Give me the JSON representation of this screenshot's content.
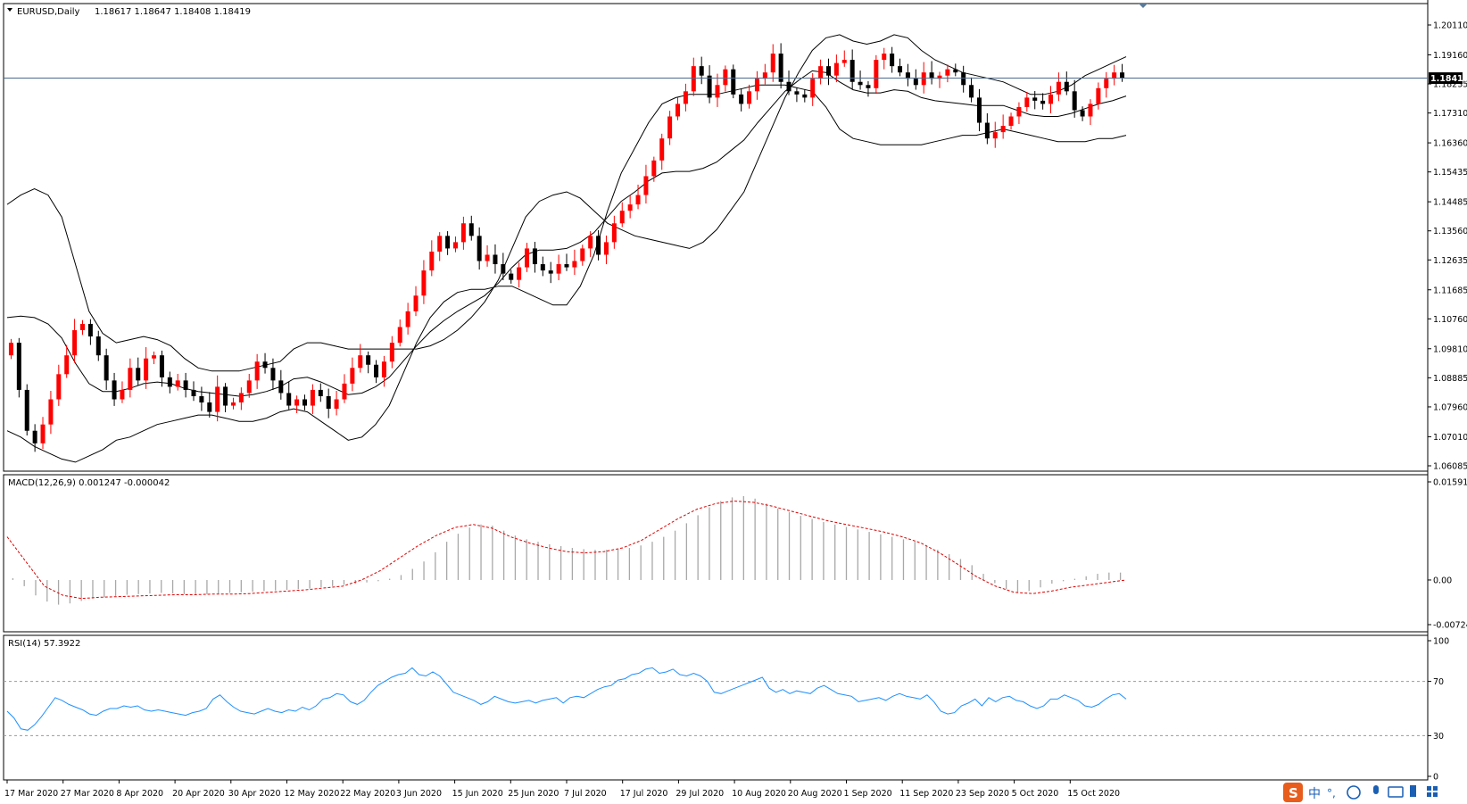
{
  "chart_data": [
    {
      "type": "candlestick",
      "title": "EURUSD,Daily",
      "ohlc_header": "1.18617 1.18647 1.18408 1.18419",
      "current_price": "1.18419",
      "y_ticks": [
        "1.20110",
        "1.19160",
        "1.18235",
        "1.17310",
        "1.16360",
        "1.15435",
        "1.14485",
        "1.13560",
        "1.12635",
        "1.11685",
        "1.10760",
        "1.09810",
        "1.08885",
        "1.07960",
        "1.07010",
        "1.06085"
      ],
      "ylim": [
        1.06085,
        1.2011
      ],
      "x_ticks": [
        "17 Mar 2020",
        "27 Mar 2020",
        "8 Apr 2020",
        "20 Apr 2020",
        "30 Apr 2020",
        "12 May 2020",
        "22 May 2020",
        "3 Jun 2020",
        "15 Jun 2020",
        "25 Jun 2020",
        "7 Jul 2020",
        "17 Jul 2020",
        "29 Jul 2020",
        "10 Aug 2020",
        "20 Aug 2020",
        "1 Sep 2020",
        "11 Sep 2020",
        "23 Sep 2020",
        "5 Oct 2020",
        "15 Oct 2020"
      ],
      "overlays": [
        "Bollinger Bands (upper, middle, lower)"
      ],
      "close": [
        1.1,
        1.085,
        1.072,
        1.068,
        1.074,
        1.082,
        1.09,
        1.096,
        1.104,
        1.106,
        1.102,
        1.096,
        1.088,
        1.082,
        1.085,
        1.092,
        1.088,
        1.095,
        1.096,
        1.089,
        1.086,
        1.088,
        1.085,
        1.083,
        1.081,
        1.078,
        1.086,
        1.08,
        1.081,
        1.084,
        1.088,
        1.094,
        1.092,
        1.088,
        1.084,
        1.08,
        1.082,
        1.08,
        1.085,
        1.083,
        1.079,
        1.082,
        1.087,
        1.092,
        1.096,
        1.093,
        1.089,
        1.094,
        1.1,
        1.105,
        1.11,
        1.115,
        1.123,
        1.129,
        1.134,
        1.13,
        1.132,
        1.138,
        1.134,
        1.126,
        1.128,
        1.125,
        1.122,
        1.12,
        1.124,
        1.13,
        1.125,
        1.123,
        1.122,
        1.125,
        1.124,
        1.126,
        1.13,
        1.134,
        1.128,
        1.132,
        1.138,
        1.142,
        1.144,
        1.147,
        1.153,
        1.158,
        1.165,
        1.172,
        1.176,
        1.18,
        1.188,
        1.185,
        1.178,
        1.182,
        1.187,
        1.179,
        1.176,
        1.18,
        1.184,
        1.186,
        1.192,
        1.183,
        1.18,
        1.179,
        1.178,
        1.184,
        1.188,
        1.185,
        1.189,
        1.19,
        1.183,
        1.182,
        1.181,
        1.19,
        1.192,
        1.188,
        1.186,
        1.184,
        1.182,
        1.186,
        1.184,
        1.185,
        1.187,
        1.186,
        1.182,
        1.178,
        1.17,
        1.165,
        1.167,
        1.169,
        1.172,
        1.175,
        1.178,
        1.177,
        1.176,
        1.179,
        1.183,
        1.18,
        1.174,
        1.172,
        1.176,
        1.181,
        1.184,
        1.186,
        1.1842
      ],
      "bollinger_upper": [
        1.144,
        1.147,
        1.149,
        1.147,
        1.14,
        1.125,
        1.11,
        1.103,
        1.1,
        1.101,
        1.102,
        1.101,
        1.099,
        1.095,
        1.092,
        1.091,
        1.091,
        1.091,
        1.092,
        1.093,
        1.094,
        1.098,
        1.1,
        1.1,
        1.099,
        1.098,
        1.098,
        1.098,
        1.098,
        1.098,
        1.098,
        1.099,
        1.101,
        1.104,
        1.108,
        1.113,
        1.12,
        1.13,
        1.14,
        1.145,
        1.147,
        1.148,
        1.146,
        1.142,
        1.138,
        1.136,
        1.134,
        1.133,
        1.132,
        1.131,
        1.13,
        1.132,
        1.136,
        1.142,
        1.148,
        1.158,
        1.168,
        1.178,
        1.186,
        1.193,
        1.197,
        1.198,
        1.196,
        1.195,
        1.196,
        1.198,
        1.197,
        1.193,
        1.19,
        1.188,
        1.186,
        1.185,
        1.184,
        1.183,
        1.181,
        1.179,
        1.179,
        1.18,
        1.182,
        1.185,
        1.187,
        1.189,
        1.191
      ],
      "bollinger_lower": [
        1.072,
        1.07,
        1.067,
        1.065,
        1.063,
        1.062,
        1.064,
        1.066,
        1.069,
        1.07,
        1.072,
        1.074,
        1.075,
        1.076,
        1.077,
        1.077,
        1.076,
        1.075,
        1.075,
        1.076,
        1.078,
        1.079,
        1.078,
        1.075,
        1.072,
        1.069,
        1.07,
        1.074,
        1.08,
        1.09,
        1.1,
        1.108,
        1.113,
        1.116,
        1.117,
        1.117,
        1.118,
        1.118,
        1.116,
        1.114,
        1.112,
        1.112,
        1.118,
        1.128,
        1.142,
        1.154,
        1.162,
        1.17,
        1.176,
        1.178,
        1.179,
        1.179,
        1.179,
        1.18,
        1.181,
        1.182,
        1.182,
        1.182,
        1.181,
        1.18,
        1.175,
        1.168,
        1.165,
        1.164,
        1.163,
        1.163,
        1.163,
        1.163,
        1.164,
        1.165,
        1.166,
        1.166,
        1.167,
        1.168,
        1.167,
        1.166,
        1.165,
        1.164,
        1.164,
        1.164,
        1.165,
        1.165,
        1.166
      ]
    },
    {
      "type": "bar-line",
      "title": "MACD(12,26,9) 0.001247 -0.000042",
      "y_ticks": [
        "0.015917",
        "0.00",
        "-0.007244"
      ],
      "ylim": [
        -0.007244,
        0.015917
      ],
      "histogram": [
        0.0003,
        -0.001,
        -0.0025,
        -0.0035,
        -0.004,
        -0.0038,
        -0.0034,
        -0.003,
        -0.0028,
        -0.0026,
        -0.0024,
        -0.0023,
        -0.0022,
        -0.0021,
        -0.0022,
        -0.0023,
        -0.0024,
        -0.0023,
        -0.0022,
        -0.0021,
        -0.002,
        -0.0019,
        -0.0018,
        -0.0017,
        -0.0016,
        -0.0015,
        -0.0014,
        -0.0012,
        -0.001,
        -0.0008,
        -0.0006,
        -0.0004,
        -0.0002,
        0.0002,
        0.0008,
        0.0018,
        0.003,
        0.0045,
        0.0062,
        0.0075,
        0.0085,
        0.009,
        0.0088,
        0.008,
        0.0072,
        0.0066,
        0.0062,
        0.0058,
        0.0055,
        0.0052,
        0.005,
        0.0049,
        0.0049,
        0.005,
        0.0052,
        0.0056,
        0.0062,
        0.007,
        0.008,
        0.0092,
        0.0105,
        0.0118,
        0.0128,
        0.0134,
        0.0136,
        0.0132,
        0.0124,
        0.0116,
        0.011,
        0.0104,
        0.0099,
        0.0094,
        0.009,
        0.0086,
        0.0082,
        0.0078,
        0.0074,
        0.007,
        0.0066,
        0.0062,
        0.0056,
        0.0049,
        0.0042,
        0.0034,
        0.0024,
        0.001,
        -0.0005,
        -0.0015,
        -0.002,
        -0.0018,
        -0.0012,
        -0.0006,
        -0.0002,
        0.0002,
        0.0006,
        0.001,
        0.0012,
        0.0012
      ],
      "signal": [
        0.007,
        0.003,
        -0.001,
        -0.0025,
        -0.003,
        -0.0028,
        -0.0027,
        -0.0026,
        -0.0025,
        -0.0024,
        -0.0024,
        -0.0023,
        -0.0023,
        -0.0022,
        -0.002,
        -0.0018,
        -0.0016,
        -0.0013,
        -0.001,
        0.0,
        0.0015,
        0.0035,
        0.0055,
        0.0072,
        0.0085,
        0.009,
        0.0084,
        0.007,
        0.006,
        0.0052,
        0.0046,
        0.0044,
        0.0046,
        0.0052,
        0.0064,
        0.0082,
        0.01,
        0.0115,
        0.0124,
        0.0128,
        0.0126,
        0.012,
        0.0112,
        0.0104,
        0.0096,
        0.009,
        0.0084,
        0.0078,
        0.007,
        0.006,
        0.0044,
        0.0025,
        0.0005,
        -0.001,
        -0.002,
        -0.0022,
        -0.0018,
        -0.0012,
        -0.0008,
        -0.0004,
        -0.0
      ]
    },
    {
      "type": "line",
      "title": "RSI(14) 57.3922",
      "y_ticks": [
        "100",
        "70",
        "30",
        "0"
      ],
      "ylim": [
        0,
        100
      ],
      "levels": [
        70,
        30
      ],
      "values": [
        48,
        43,
        35,
        34,
        38,
        44,
        51,
        58,
        56,
        53,
        51,
        49,
        46,
        45,
        48,
        50,
        50,
        52,
        51,
        52,
        49,
        48,
        49,
        48,
        47,
        46,
        45,
        47,
        48,
        50,
        57,
        60,
        55,
        51,
        48,
        47,
        46,
        48,
        50,
        48,
        47,
        49,
        48,
        51,
        49,
        52,
        57,
        58,
        61,
        60,
        55,
        53,
        56,
        62,
        67,
        70,
        73,
        75,
        76,
        80,
        75,
        74,
        77,
        74,
        68,
        62,
        60,
        58,
        56,
        53,
        55,
        59,
        57,
        55,
        54,
        55,
        56,
        54,
        56,
        57,
        58,
        54,
        58,
        59,
        58,
        61,
        64,
        66,
        67,
        71,
        72,
        75,
        76,
        79,
        80,
        76,
        77,
        79,
        75,
        74,
        76,
        74,
        70,
        62,
        61,
        63,
        65,
        67,
        69,
        71,
        73,
        65,
        62,
        64,
        61,
        63,
        62,
        61,
        65,
        67,
        64,
        61,
        60,
        59,
        55,
        56,
        57,
        58,
        56,
        59,
        61,
        59,
        58,
        57,
        60,
        55,
        48,
        46,
        47,
        52,
        54,
        57,
        52,
        58,
        55,
        58,
        59,
        56,
        55,
        52,
        50,
        52,
        57,
        57,
        60,
        58,
        56,
        52,
        51,
        53,
        57,
        60,
        61,
        57
      ]
    }
  ],
  "taskbar": {
    "ime_glyph": "中",
    "ime_punct": "°,"
  }
}
